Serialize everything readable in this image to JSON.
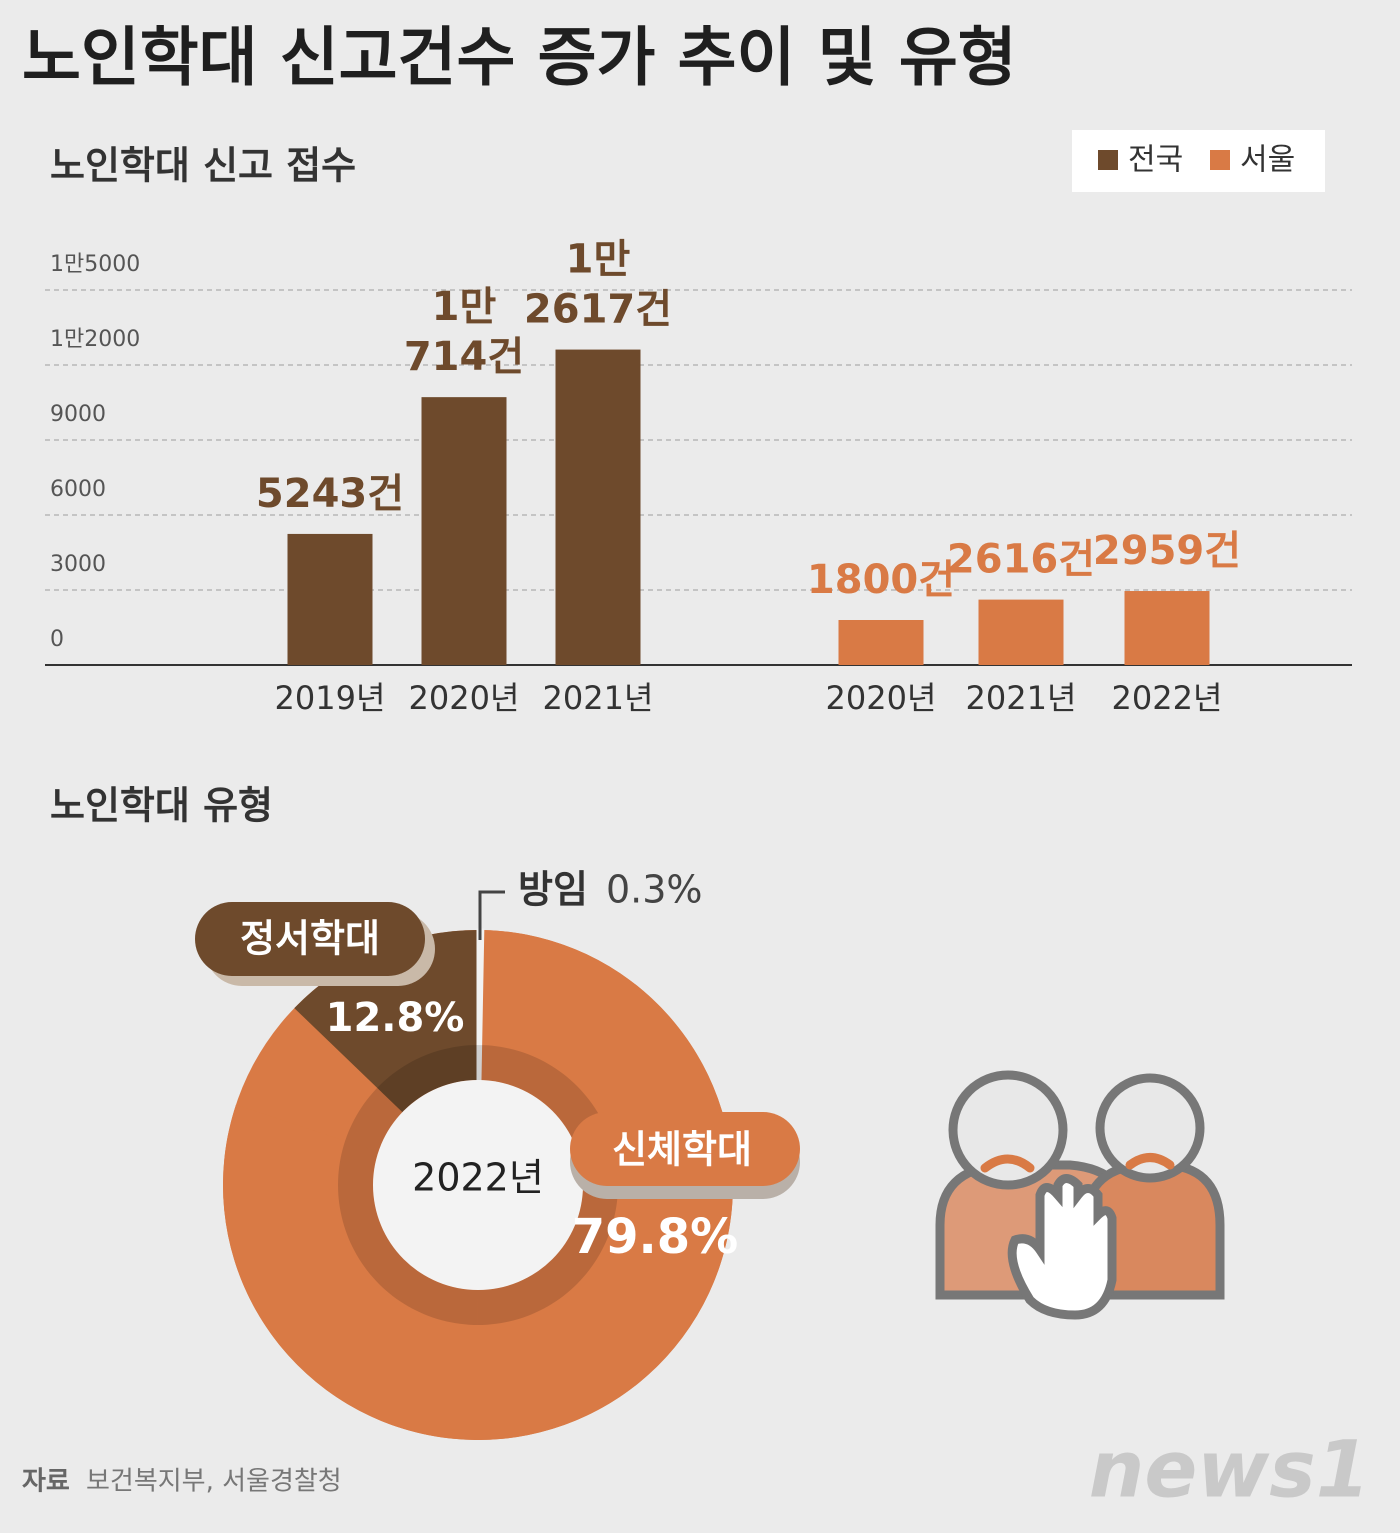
{
  "title": "노인학대 신고건수 증가 추이 및 유형",
  "chart_data": [
    {
      "type": "bar",
      "title": "노인학대 신고 접수",
      "categories": [
        "2019년",
        "2020년",
        "2021년",
        "2020년",
        "2021년",
        "2022년"
      ],
      "series": [
        {
          "name": "전국",
          "color": "#6e4a2c",
          "values": [
            5243,
            10714,
            12617,
            null,
            null,
            null
          ],
          "value_labels": [
            "5243건",
            "1만 714건",
            "1만 2617건",
            null,
            null,
            null
          ]
        },
        {
          "name": "서울",
          "color": "#d97a45",
          "values": [
            null,
            null,
            null,
            1800,
            2616,
            2959
          ],
          "value_labels": [
            null,
            null,
            null,
            "1800건",
            "2616건",
            "2959건"
          ]
        }
      ],
      "ylim": [
        0,
        15000
      ],
      "yticks": [
        0,
        3000,
        6000,
        9000,
        {
          "value": 12000,
          "label": "1만2000"
        },
        {
          "value": 15000,
          "label": "1만5000"
        }
      ],
      "grid": true,
      "legend": "top-right"
    },
    {
      "type": "pie",
      "title": "노인학대 유형",
      "center_label": "2022년",
      "categories": [
        "신체학대",
        "정서학대",
        "방임"
      ],
      "values": [
        79.8,
        12.8,
        0.3
      ],
      "value_labels": [
        "79.8%",
        "12.8%",
        "0.3%"
      ],
      "colors": [
        "#d97a45",
        "#6e4a2c",
        "#f2f2f2"
      ]
    }
  ],
  "source": {
    "label": "자료",
    "text": "보건복지부, 서울경찰청"
  },
  "logo": "news1"
}
